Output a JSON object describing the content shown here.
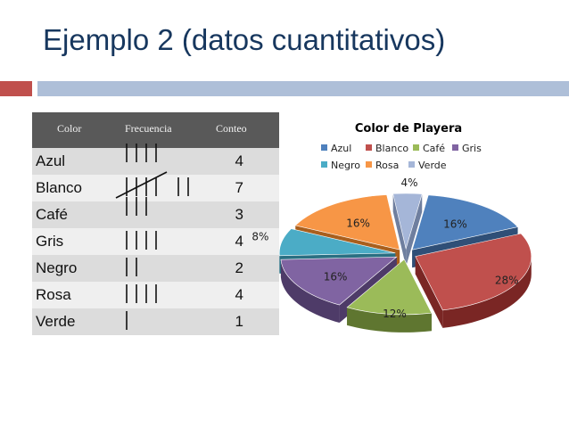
{
  "slide": {
    "title": "Ejemplo 2 (datos cuantitativos)"
  },
  "table": {
    "headers": {
      "color": "Color",
      "frecuencia": "Frecuencia",
      "conteo": "Conteo"
    },
    "rows": [
      {
        "color": "Azul",
        "tally": 4,
        "conteo": "4"
      },
      {
        "color": "Blanco",
        "tally": 7,
        "conteo": "7"
      },
      {
        "color": "Café",
        "tally": 3,
        "conteo": "3"
      },
      {
        "color": "Gris",
        "tally": 4,
        "conteo": "4"
      },
      {
        "color": "Negro",
        "tally": 2,
        "conteo": "2"
      },
      {
        "color": "Rosa",
        "tally": 4,
        "conteo": "4"
      },
      {
        "color": "Verde",
        "tally": 1,
        "conteo": "1"
      }
    ]
  },
  "chart_data": {
    "type": "pie",
    "title": "Color de Playera",
    "legend_position": "top",
    "categories": [
      "Azul",
      "Blanco",
      "Café",
      "Gris",
      "Negro",
      "Rosa",
      "Verde"
    ],
    "values": [
      16,
      28,
      12,
      16,
      8,
      16,
      4
    ],
    "labels": [
      "16%",
      "28%",
      "12%",
      "16%",
      "8%",
      "16%",
      "4%"
    ],
    "colors": [
      "#4f81bd",
      "#c0504d",
      "#9bbb59",
      "#8064a2",
      "#4bacc6",
      "#f79646",
      "#a5b6d8"
    ],
    "dark_colors": [
      "#2f4f77",
      "#7a2624",
      "#5f7630",
      "#4e3b68",
      "#2a6f82",
      "#a95f1d",
      "#6f7f9f"
    ]
  },
  "theme": {
    "title_color": "#17375e",
    "accent_red": "#c0504d",
    "accent_blue": "#aebfd8"
  }
}
